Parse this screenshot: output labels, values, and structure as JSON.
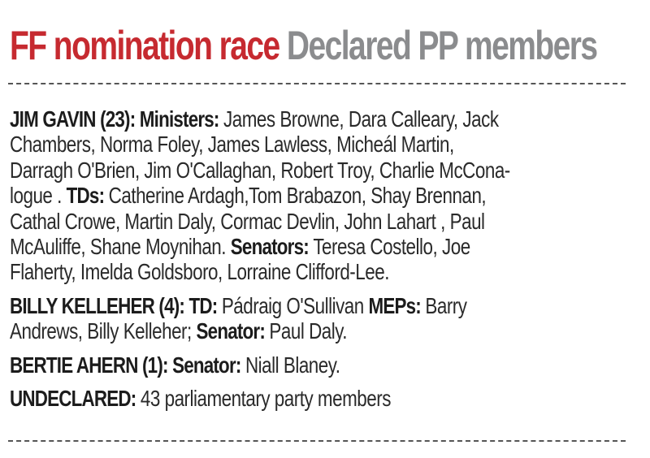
{
  "header": {
    "title_red": "FF nomination race",
    "title_gray": "Declared PP members",
    "colors": {
      "red": "#c62a30",
      "gray": "#8b8c8e"
    }
  },
  "sections": [
    {
      "lines": [
        [
          {
            "b": "JIM GAVIN (23): Ministers: "
          },
          {
            "t": "James Browne, Dara Calleary, Jack"
          }
        ],
        [
          {
            "t": "Chambers, Norma Foley, James Lawless, Micheál Martin,"
          }
        ],
        [
          {
            "t": "Darragh O'Brien, Jim O'Callaghan, Robert Troy, Charlie McCona-"
          }
        ],
        [
          {
            "t": "logue . "
          },
          {
            "b": "TDs: "
          },
          {
            "t": "Catherine Ardagh,Tom Brabazon, Shay Brennan,"
          }
        ],
        [
          {
            "t": "Cathal Crowe, Martin Daly, Cormac Devlin, John Lahart , Paul"
          }
        ],
        [
          {
            "t": "McAuliffe, Shane Moynihan. "
          },
          {
            "b": "Senators: "
          },
          {
            "t": "Teresa Costello, Joe"
          }
        ],
        [
          {
            "t": "Flaherty, Imelda Goldsboro, Lorraine Clifford-Lee."
          }
        ]
      ]
    },
    {
      "lines": [
        [
          {
            "b": "BILLY KELLEHER (4): TD: "
          },
          {
            "t": "Pádraig O'Sullivan "
          },
          {
            "b": "MEPs: "
          },
          {
            "t": "Barry"
          }
        ],
        [
          {
            "t": "Andrews, Billy Kelleher; "
          },
          {
            "b": "Senator: "
          },
          {
            "t": "Paul Daly."
          }
        ]
      ]
    },
    {
      "lines": [
        [
          {
            "b": "BERTIE AHERN (1): Senator: "
          },
          {
            "t": "Niall Blaney."
          }
        ]
      ]
    },
    {
      "lines": [
        [
          {
            "b": "UNDECLARED: "
          },
          {
            "t": "43 parliamentary party members"
          }
        ]
      ]
    }
  ]
}
